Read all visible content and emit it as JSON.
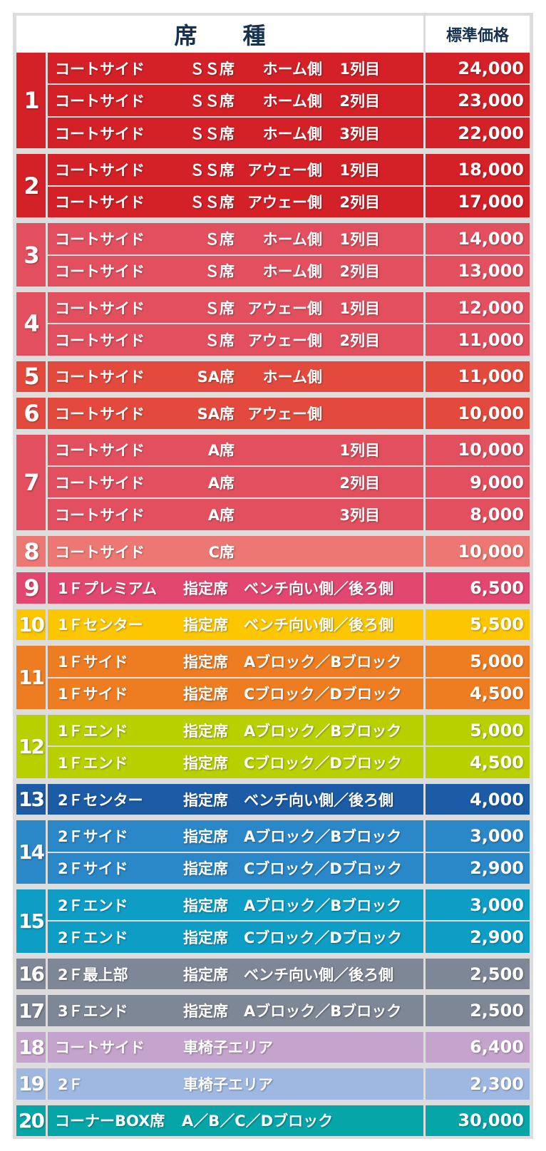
{
  "header": {
    "seat_type": "席　　種",
    "price": "標準価格"
  },
  "groups": [
    {
      "no": "1",
      "color": "#d42027",
      "rows": [
        {
          "cols": [
            "コートサイド",
            "ＳＳ席",
            "ホーム側",
            "1列目"
          ],
          "price": "24,000"
        },
        {
          "cols": [
            "コートサイド",
            "ＳＳ席",
            "ホーム側",
            "2列目"
          ],
          "price": "23,000"
        },
        {
          "cols": [
            "コートサイド",
            "ＳＳ席",
            "ホーム側",
            "3列目"
          ],
          "price": "22,000"
        }
      ]
    },
    {
      "no": "2",
      "color": "#d42027",
      "rows": [
        {
          "cols": [
            "コートサイド",
            "ＳＳ席",
            "アウェー側",
            "1列目"
          ],
          "price": "18,000"
        },
        {
          "cols": [
            "コートサイド",
            "ＳＳ席",
            "アウェー側",
            "2列目"
          ],
          "price": "17,000"
        }
      ]
    },
    {
      "no": "3",
      "color": "#e2505f",
      "rows": [
        {
          "cols": [
            "コートサイド",
            "Ｓ席",
            "ホーム側",
            "1列目"
          ],
          "price": "14,000"
        },
        {
          "cols": [
            "コートサイド",
            "Ｓ席",
            "ホーム側",
            "2列目"
          ],
          "price": "13,000"
        }
      ]
    },
    {
      "no": "4",
      "color": "#e2505f",
      "rows": [
        {
          "cols": [
            "コートサイド",
            "Ｓ席",
            "アウェー側",
            "1列目"
          ],
          "price": "12,000"
        },
        {
          "cols": [
            "コートサイド",
            "Ｓ席",
            "アウェー側",
            "2列目"
          ],
          "price": "11,000"
        }
      ]
    },
    {
      "no": "5",
      "color": "#e34a3d",
      "rows": [
        {
          "cols": [
            "コートサイド",
            "SA席",
            "ホーム側",
            ""
          ],
          "price": "11,000"
        }
      ]
    },
    {
      "no": "6",
      "color": "#e34a3d",
      "rows": [
        {
          "cols": [
            "コートサイド",
            "SA席",
            "アウェー側",
            ""
          ],
          "price": "10,000"
        }
      ]
    },
    {
      "no": "7",
      "color": "#e2505f",
      "rows": [
        {
          "cols": [
            "コートサイド",
            "A席",
            "",
            "1列目"
          ],
          "price": "10,000"
        },
        {
          "cols": [
            "コートサイド",
            "A席",
            "",
            "2列目"
          ],
          "price": "9,000"
        },
        {
          "cols": [
            "コートサイド",
            "A席",
            "",
            "3列目"
          ],
          "price": "8,000"
        }
      ]
    },
    {
      "no": "8",
      "color": "#ec7773",
      "rows": [
        {
          "cols": [
            "コートサイド",
            "C席",
            "",
            ""
          ],
          "price": "10,000"
        }
      ]
    },
    {
      "no": "9",
      "color": "#e2476f",
      "rows": [
        {
          "cols": [
            "1Ｆプレミアム",
            "指定席",
            "ベンチ向い側／後ろ側",
            ""
          ],
          "price": "6,500"
        }
      ]
    },
    {
      "no": "10",
      "color": "#fcc600",
      "rows": [
        {
          "cols": [
            "1Ｆセンター",
            "指定席",
            "ベンチ向い側／後ろ側",
            ""
          ],
          "price": "5,500"
        }
      ]
    },
    {
      "no": "11",
      "color": "#ee7d22",
      "rows": [
        {
          "cols": [
            "1Ｆサイド",
            "指定席",
            "Aブロック／Bブロック",
            ""
          ],
          "price": "5,000"
        },
        {
          "cols": [
            "1Ｆサイド",
            "指定席",
            "Cブロック／Dブロック",
            ""
          ],
          "price": "4,500"
        }
      ]
    },
    {
      "no": "12",
      "color": "#b9d000",
      "rows": [
        {
          "cols": [
            "1Ｆエンド",
            "指定席",
            "Aブロック／Bブロック",
            ""
          ],
          "price": "5,000"
        },
        {
          "cols": [
            "1Ｆエンド",
            "指定席",
            "Cブロック／Dブロック",
            ""
          ],
          "price": "4,500"
        }
      ]
    },
    {
      "no": "13",
      "color": "#1c5ba6",
      "rows": [
        {
          "cols": [
            "2Ｆセンター",
            "指定席",
            "ベンチ向い側／後ろ側",
            ""
          ],
          "price": "4,000"
        }
      ]
    },
    {
      "no": "14",
      "color": "#2a87c8",
      "rows": [
        {
          "cols": [
            "2Ｆサイド",
            "指定席",
            "Aブロック／Bブロック",
            ""
          ],
          "price": "3,000"
        },
        {
          "cols": [
            "2Ｆサイド",
            "指定席",
            "Cブロック／Dブロック",
            ""
          ],
          "price": "2,900"
        }
      ]
    },
    {
      "no": "15",
      "color": "#0d9dc5",
      "rows": [
        {
          "cols": [
            "2Ｆエンド",
            "指定席",
            "Aブロック／Bブロック",
            ""
          ],
          "price": "3,000"
        },
        {
          "cols": [
            "2Ｆエンド",
            "指定席",
            "Cブロック／Dブロック",
            ""
          ],
          "price": "2,900"
        }
      ]
    },
    {
      "no": "16",
      "color": "#7e8795",
      "rows": [
        {
          "cols": [
            "2Ｆ最上部",
            "指定席",
            "ベンチ向い側／後ろ側",
            ""
          ],
          "price": "2,500"
        }
      ]
    },
    {
      "no": "17",
      "color": "#7e8795",
      "rows": [
        {
          "cols": [
            "3Ｆエンド",
            "指定席",
            "Aブロック／Bブロック",
            ""
          ],
          "price": "2,500"
        }
      ]
    },
    {
      "no": "18",
      "color": "#c4a3cc",
      "rows": [
        {
          "cols": [
            "コートサイド",
            "車椅子エリア",
            "",
            ""
          ],
          "price": "6,400"
        }
      ]
    },
    {
      "no": "19",
      "color": "#9fb8e2",
      "rows": [
        {
          "cols": [
            "2Ｆ",
            "車椅子エリア",
            "",
            ""
          ],
          "price": "2,300"
        }
      ]
    },
    {
      "no": "20",
      "color": "#06a6a8",
      "rows": [
        {
          "cols": [
            "コーナーBOX席",
            "A／B／C／Dブロック",
            "",
            ""
          ],
          "price": "30,000"
        }
      ]
    }
  ]
}
